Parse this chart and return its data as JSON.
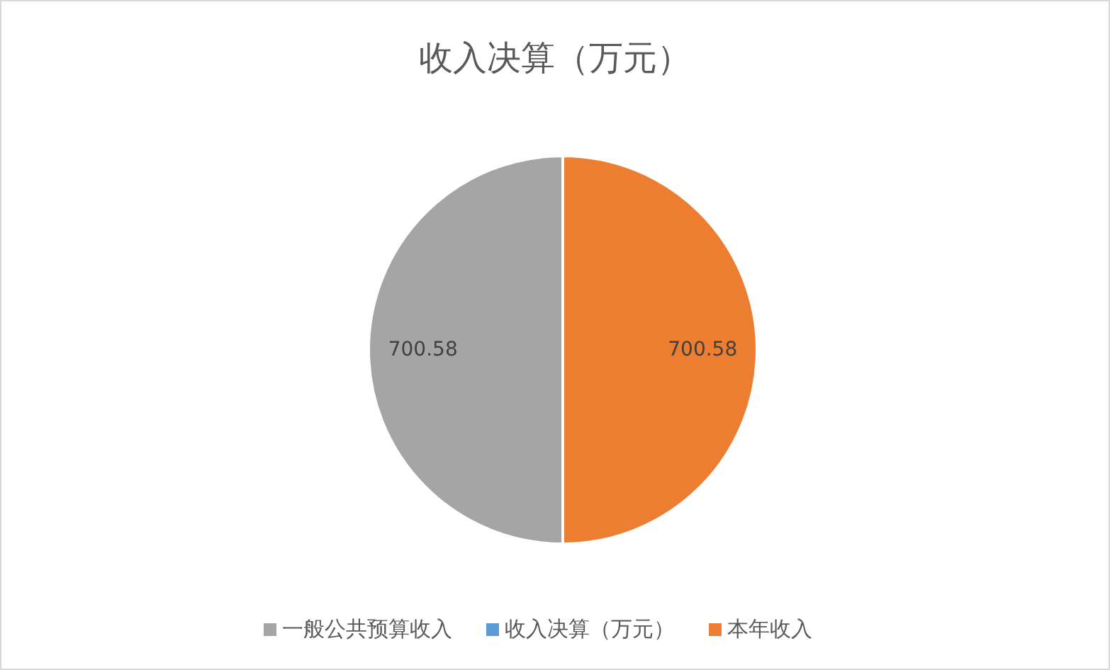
{
  "chart_data": {
    "type": "pie",
    "title": "收入决算（万元）",
    "categories": [
      "收入决算（万元）",
      "本年收入",
      "一般公共预算收入"
    ],
    "values": [
      0,
      700.58,
      700.58
    ],
    "colors": [
      "#5b9bd5",
      "#ed7d31",
      "#a5a5a5"
    ],
    "value_labels": [
      null,
      "700.58",
      "700.58"
    ],
    "legend": "bottom"
  }
}
